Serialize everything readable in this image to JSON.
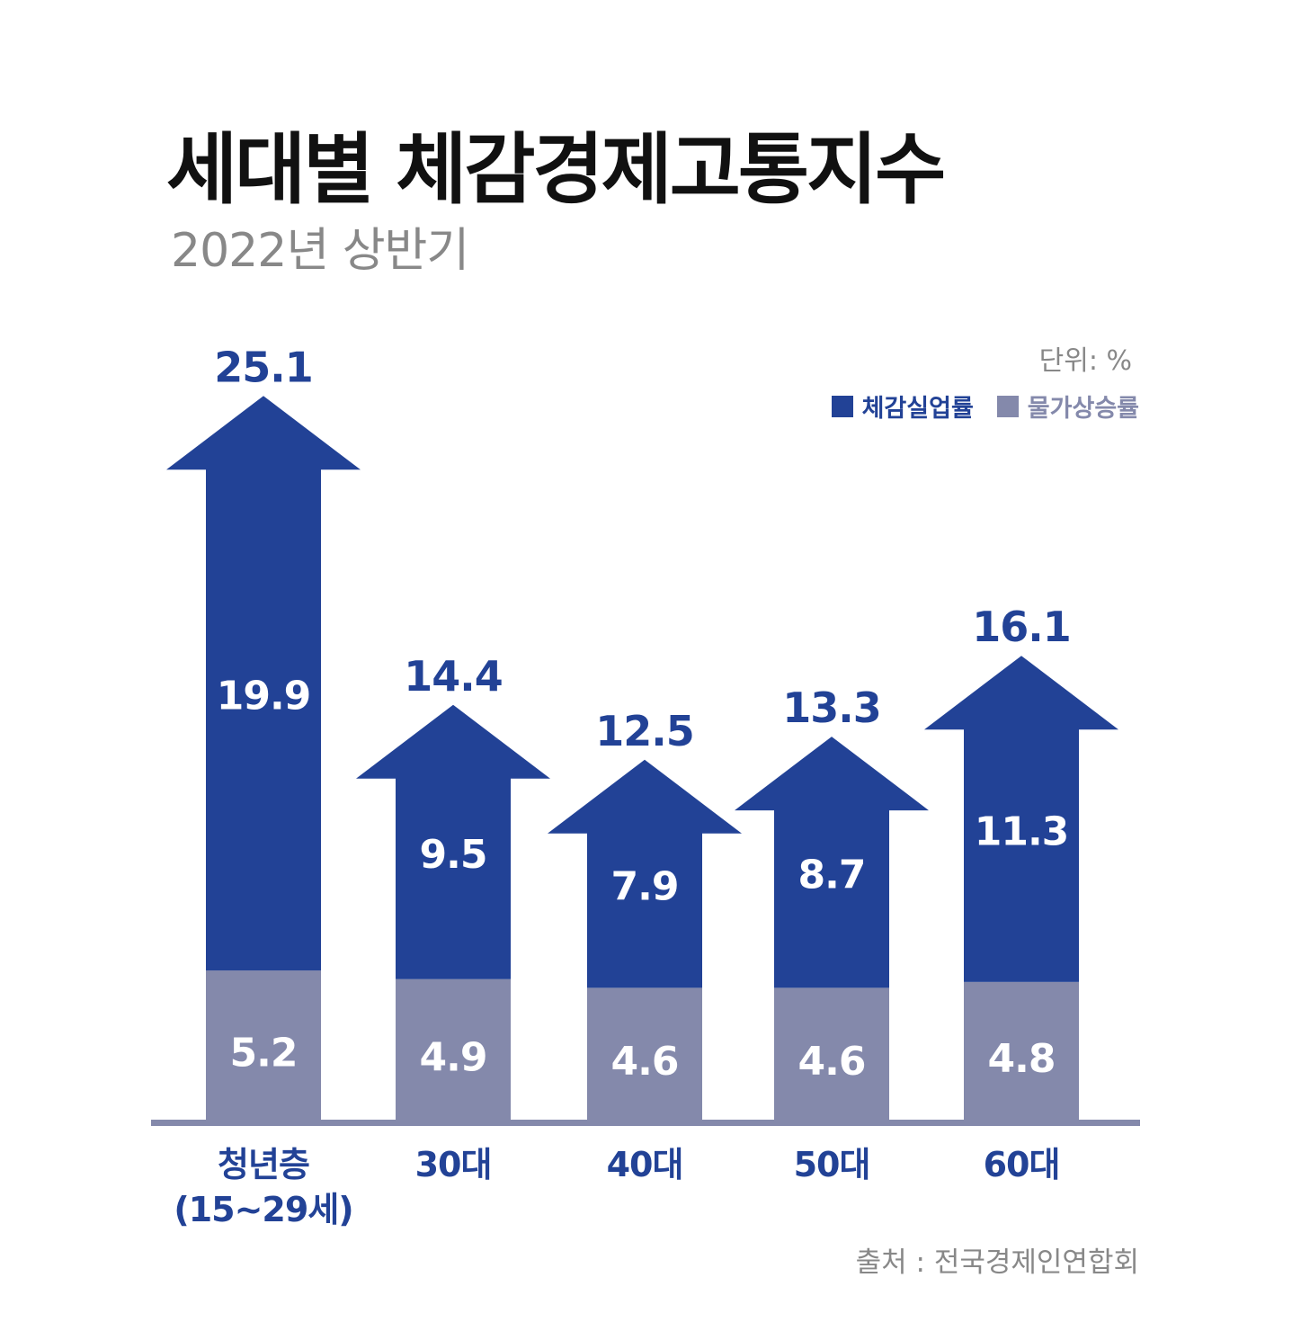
{
  "title": "세대별 체감경제고통지수",
  "subtitle": "2022년 상반기",
  "unit_label": "단위: %",
  "source": "출처 : 전국경제인연합회",
  "colors": {
    "unemployment": "#224296",
    "inflation": "#8489AB",
    "axis": "#8489AB"
  },
  "chart_data": {
    "type": "bar",
    "stacked": true,
    "categories": [
      "청년층\n(15~29세)",
      "30대",
      "40대",
      "50대",
      "60대"
    ],
    "series": [
      {
        "name": "체감실업률",
        "values": [
          19.9,
          9.5,
          7.9,
          8.7,
          11.3
        ]
      },
      {
        "name": "물가상승률",
        "values": [
          5.2,
          4.9,
          4.6,
          4.6,
          4.8
        ]
      }
    ],
    "totals": [
      25.1,
      14.4,
      12.5,
      13.3,
      16.1
    ],
    "legend_position": "top-right",
    "grid": false
  }
}
